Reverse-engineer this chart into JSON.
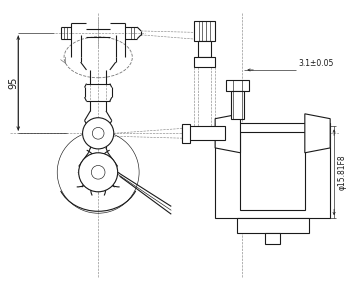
{
  "bg_color": "#ffffff",
  "line_color": "#1a1a1a",
  "dim_color": "#1a1a1a",
  "dimension_95": "95",
  "annotation_31": "3.1±0.05",
  "annotation_phi": "φ15.81F8",
  "figsize": [
    3.47,
    2.9
  ],
  "dpi": 100
}
